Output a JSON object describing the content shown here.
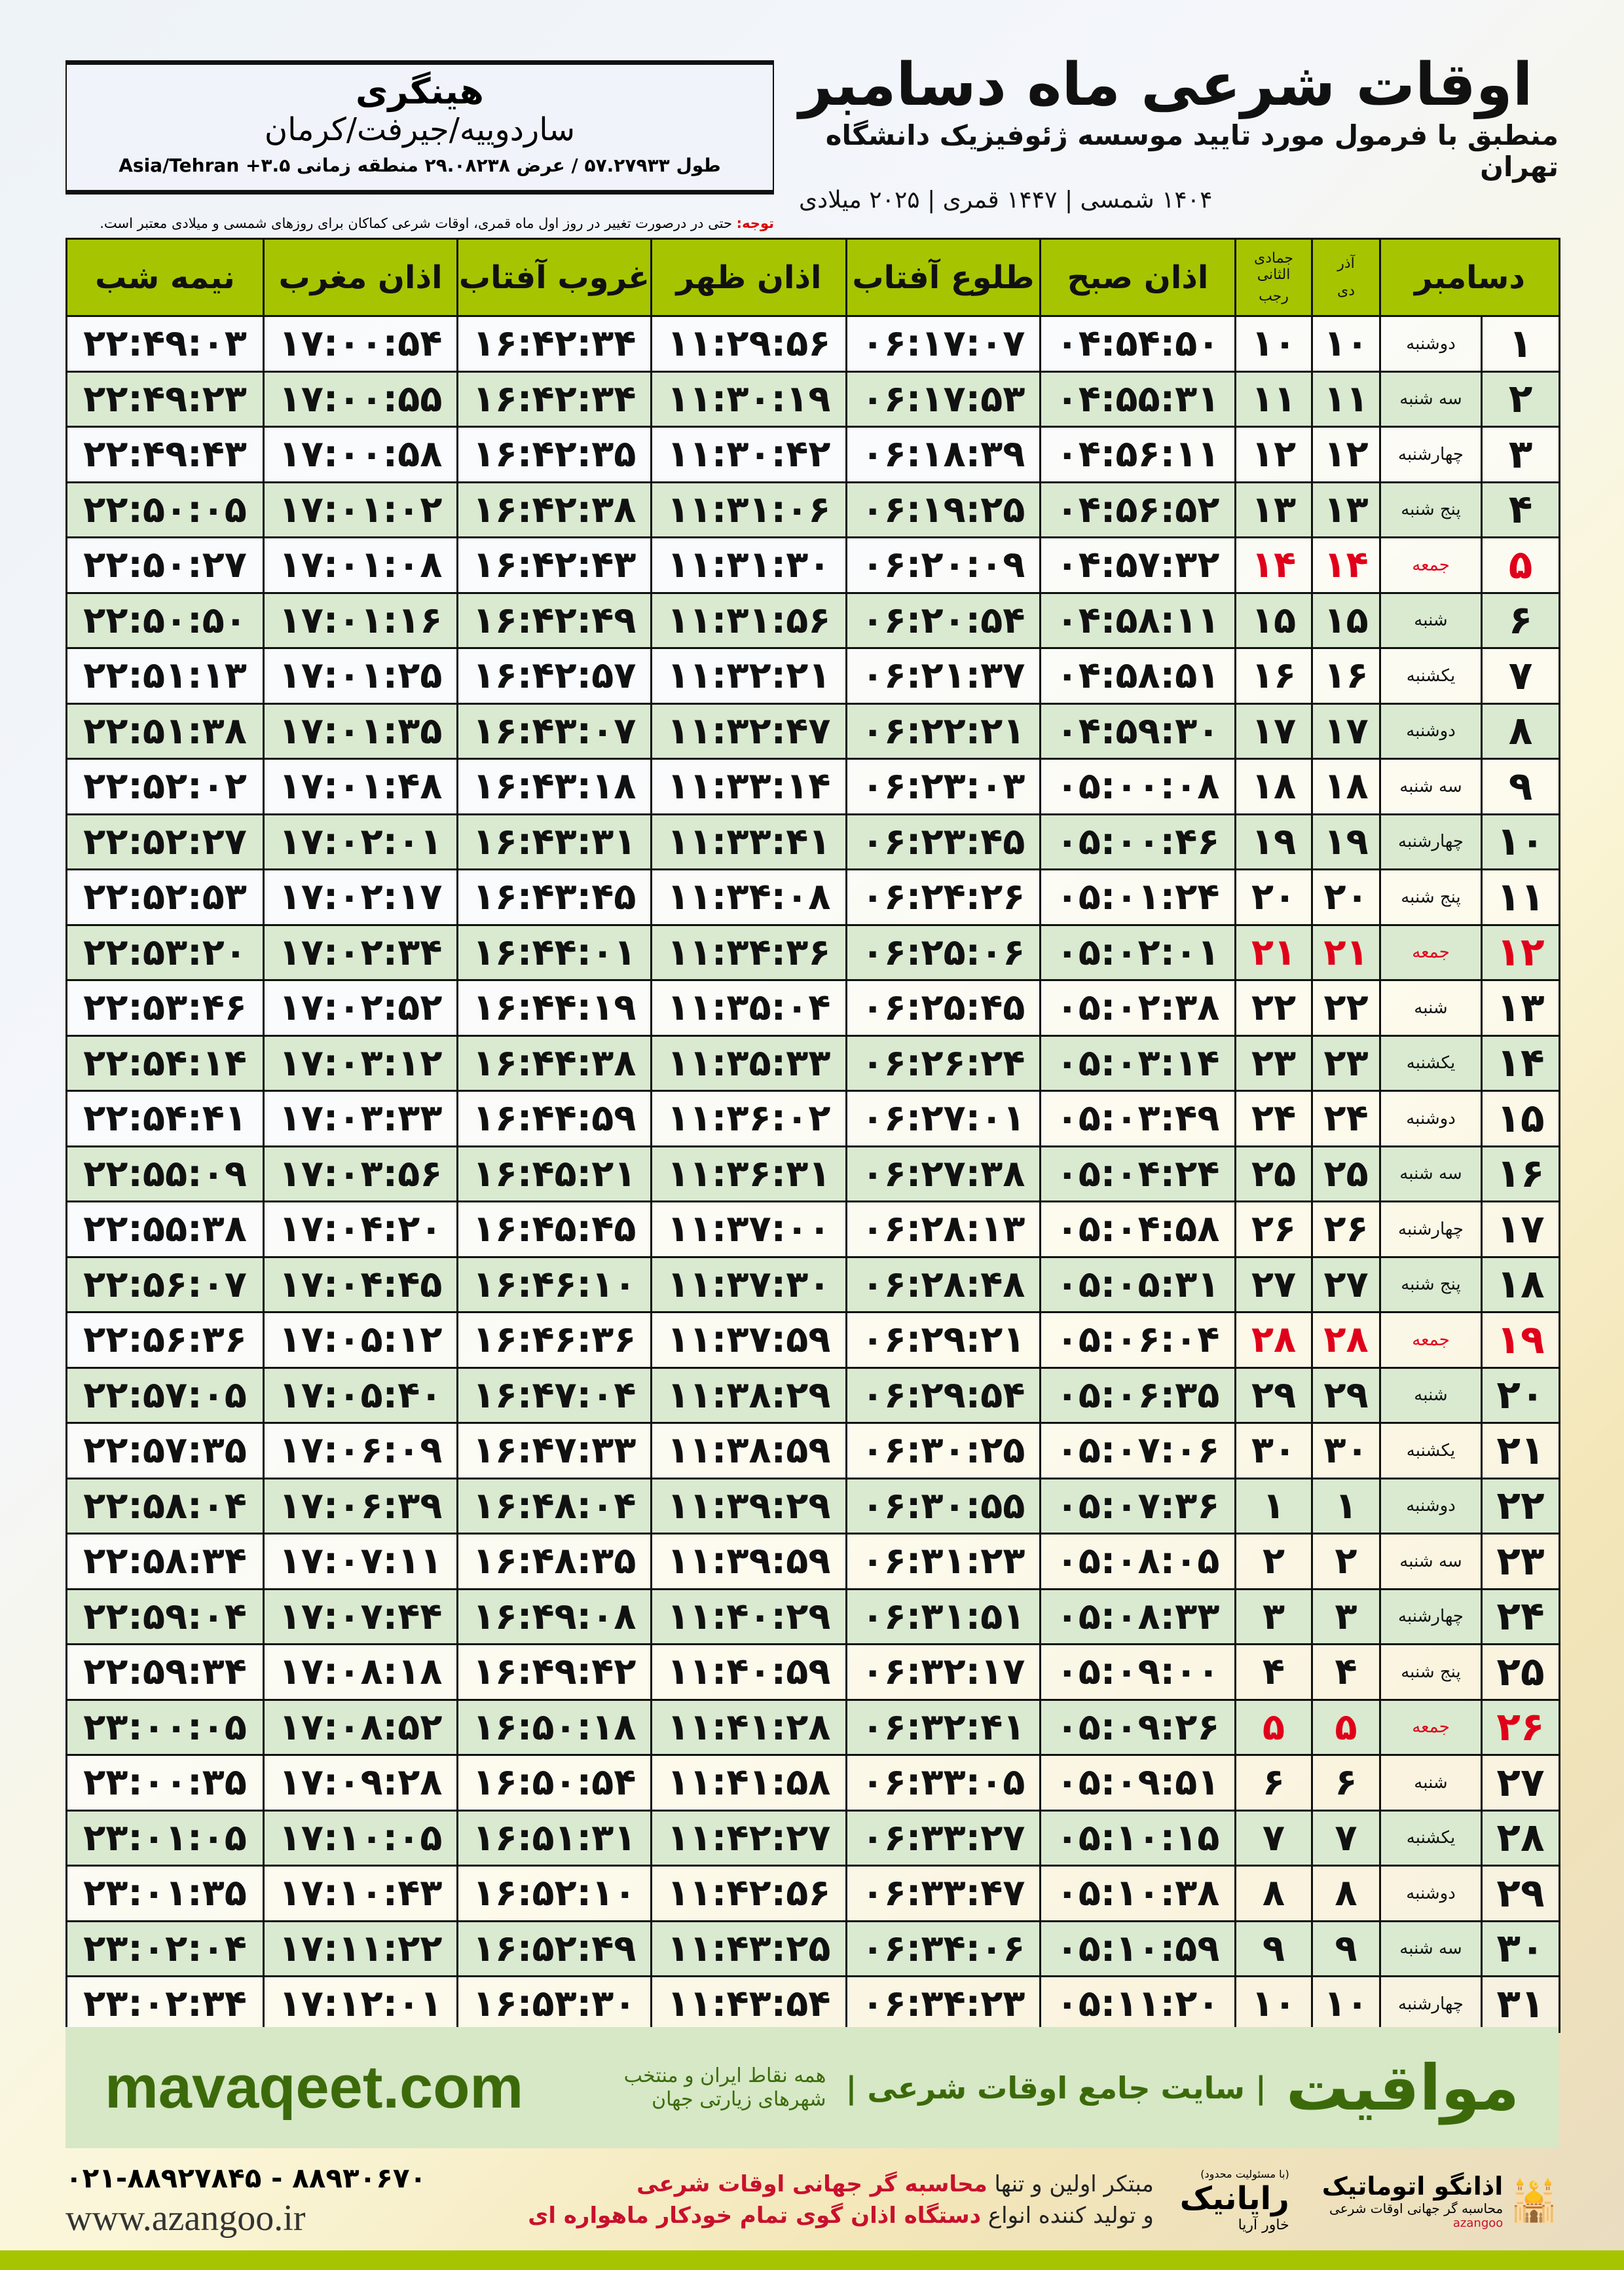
{
  "location": {
    "name": "هینگری",
    "region": "ساردوییه/جیرفت/کرمان",
    "coords": "طول ۵۷.۲۷۹۳۳ / عرض ۲۹.۰۸۲۳۸ منطقه زمانی ۳.۵+ Asia/Tehran"
  },
  "header": {
    "title": "اوقات شرعی ماه دسامبر",
    "subtitle": "منطبق با فرمول مورد تایید موسسه ژئوفیزیک دانشگاه تهران",
    "years": "۱۴۰۴ شمسی | ۱۴۴۷ قمری | ۲۰۲۵ میلادی"
  },
  "note": {
    "label": "توجه:",
    "text": " حتی در درصورت تغییر در روز اول ماه قمری، اوقات شرعی کماکان برای روزهای شمسی و میلادی معتبر است."
  },
  "table": {
    "headers": {
      "month": "دسامبر",
      "solar_top": "آذر",
      "solar_bottom": "دی",
      "lunar_top": "جمادی الثانی",
      "lunar_bottom": "رجب",
      "fajr": "اذان صبح",
      "sunrise": "طلوع آفتاب",
      "dhuhr": "اذان ظهر",
      "sunset": "غروب آفتاب",
      "maghrib": "اذان مغرب",
      "midnight": "نیمه شب"
    },
    "friday_color": "#e0001a",
    "header_color": "#a6c500",
    "alt_row_color": "#d9ead0",
    "rows": [
      [
        "۱",
        "دوشنبه",
        "۱۰",
        "۱۰",
        "۰۴:۵۴:۵۰",
        "۰۶:۱۷:۰۷",
        "۱۱:۲۹:۵۶",
        "۱۶:۴۲:۳۴",
        "۱۷:۰۰:۵۴",
        "۲۲:۴۹:۰۳"
      ],
      [
        "۲",
        "سه شنبه",
        "۱۱",
        "۱۱",
        "۰۴:۵۵:۳۱",
        "۰۶:۱۷:۵۳",
        "۱۱:۳۰:۱۹",
        "۱۶:۴۲:۳۴",
        "۱۷:۰۰:۵۵",
        "۲۲:۴۹:۲۳"
      ],
      [
        "۳",
        "چهارشنبه",
        "۱۲",
        "۱۲",
        "۰۴:۵۶:۱۱",
        "۰۶:۱۸:۳۹",
        "۱۱:۳۰:۴۲",
        "۱۶:۴۲:۳۵",
        "۱۷:۰۰:۵۸",
        "۲۲:۴۹:۴۳"
      ],
      [
        "۴",
        "پنج شنبه",
        "۱۳",
        "۱۳",
        "۰۴:۵۶:۵۲",
        "۰۶:۱۹:۲۵",
        "۱۱:۳۱:۰۶",
        "۱۶:۴۲:۳۸",
        "۱۷:۰۱:۰۲",
        "۲۲:۵۰:۰۵"
      ],
      [
        "۵",
        "جمعه",
        "۱۴",
        "۱۴",
        "۰۴:۵۷:۳۲",
        "۰۶:۲۰:۰۹",
        "۱۱:۳۱:۳۰",
        "۱۶:۴۲:۴۳",
        "۱۷:۰۱:۰۸",
        "۲۲:۵۰:۲۷"
      ],
      [
        "۶",
        "شنبه",
        "۱۵",
        "۱۵",
        "۰۴:۵۸:۱۱",
        "۰۶:۲۰:۵۴",
        "۱۱:۳۱:۵۶",
        "۱۶:۴۲:۴۹",
        "۱۷:۰۱:۱۶",
        "۲۲:۵۰:۵۰"
      ],
      [
        "۷",
        "یکشنبه",
        "۱۶",
        "۱۶",
        "۰۴:۵۸:۵۱",
        "۰۶:۲۱:۳۷",
        "۱۱:۳۲:۲۱",
        "۱۶:۴۲:۵۷",
        "۱۷:۰۱:۲۵",
        "۲۲:۵۱:۱۳"
      ],
      [
        "۸",
        "دوشنبه",
        "۱۷",
        "۱۷",
        "۰۴:۵۹:۳۰",
        "۰۶:۲۲:۲۱",
        "۱۱:۳۲:۴۷",
        "۱۶:۴۳:۰۷",
        "۱۷:۰۱:۳۵",
        "۲۲:۵۱:۳۸"
      ],
      [
        "۹",
        "سه شنبه",
        "۱۸",
        "۱۸",
        "۰۵:۰۰:۰۸",
        "۰۶:۲۳:۰۳",
        "۱۱:۳۳:۱۴",
        "۱۶:۴۳:۱۸",
        "۱۷:۰۱:۴۸",
        "۲۲:۵۲:۰۲"
      ],
      [
        "۱۰",
        "چهارشنبه",
        "۱۹",
        "۱۹",
        "۰۵:۰۰:۴۶",
        "۰۶:۲۳:۴۵",
        "۱۱:۳۳:۴۱",
        "۱۶:۴۳:۳۱",
        "۱۷:۰۲:۰۱",
        "۲۲:۵۲:۲۷"
      ],
      [
        "۱۱",
        "پنج شنبه",
        "۲۰",
        "۲۰",
        "۰۵:۰۱:۲۴",
        "۰۶:۲۴:۲۶",
        "۱۱:۳۴:۰۸",
        "۱۶:۴۳:۴۵",
        "۱۷:۰۲:۱۷",
        "۲۲:۵۲:۵۳"
      ],
      [
        "۱۲",
        "جمعه",
        "۲۱",
        "۲۱",
        "۰۵:۰۲:۰۱",
        "۰۶:۲۵:۰۶",
        "۱۱:۳۴:۳۶",
        "۱۶:۴۴:۰۱",
        "۱۷:۰۲:۳۴",
        "۲۲:۵۳:۲۰"
      ],
      [
        "۱۳",
        "شنبه",
        "۲۲",
        "۲۲",
        "۰۵:۰۲:۳۸",
        "۰۶:۲۵:۴۵",
        "۱۱:۳۵:۰۴",
        "۱۶:۴۴:۱۹",
        "۱۷:۰۲:۵۲",
        "۲۲:۵۳:۴۶"
      ],
      [
        "۱۴",
        "یکشنبه",
        "۲۳",
        "۲۳",
        "۰۵:۰۳:۱۴",
        "۰۶:۲۶:۲۴",
        "۱۱:۳۵:۳۳",
        "۱۶:۴۴:۳۸",
        "۱۷:۰۳:۱۲",
        "۲۲:۵۴:۱۴"
      ],
      [
        "۱۵",
        "دوشنبه",
        "۲۴",
        "۲۴",
        "۰۵:۰۳:۴۹",
        "۰۶:۲۷:۰۱",
        "۱۱:۳۶:۰۲",
        "۱۶:۴۴:۵۹",
        "۱۷:۰۳:۳۳",
        "۲۲:۵۴:۴۱"
      ],
      [
        "۱۶",
        "سه شنبه",
        "۲۵",
        "۲۵",
        "۰۵:۰۴:۲۴",
        "۰۶:۲۷:۳۸",
        "۱۱:۳۶:۳۱",
        "۱۶:۴۵:۲۱",
        "۱۷:۰۳:۵۶",
        "۲۲:۵۵:۰۹"
      ],
      [
        "۱۷",
        "چهارشنبه",
        "۲۶",
        "۲۶",
        "۰۵:۰۴:۵۸",
        "۰۶:۲۸:۱۳",
        "۱۱:۳۷:۰۰",
        "۱۶:۴۵:۴۵",
        "۱۷:۰۴:۲۰",
        "۲۲:۵۵:۳۸"
      ],
      [
        "۱۸",
        "پنج شنبه",
        "۲۷",
        "۲۷",
        "۰۵:۰۵:۳۱",
        "۰۶:۲۸:۴۸",
        "۱۱:۳۷:۳۰",
        "۱۶:۴۶:۱۰",
        "۱۷:۰۴:۴۵",
        "۲۲:۵۶:۰۷"
      ],
      [
        "۱۹",
        "جمعه",
        "۲۸",
        "۲۸",
        "۰۵:۰۶:۰۴",
        "۰۶:۲۹:۲۱",
        "۱۱:۳۷:۵۹",
        "۱۶:۴۶:۳۶",
        "۱۷:۰۵:۱۲",
        "۲۲:۵۶:۳۶"
      ],
      [
        "۲۰",
        "شنبه",
        "۲۹",
        "۲۹",
        "۰۵:۰۶:۳۵",
        "۰۶:۲۹:۵۴",
        "۱۱:۳۸:۲۹",
        "۱۶:۴۷:۰۴",
        "۱۷:۰۵:۴۰",
        "۲۲:۵۷:۰۵"
      ],
      [
        "۲۱",
        "یکشنبه",
        "۳۰",
        "۳۰",
        "۰۵:۰۷:۰۶",
        "۰۶:۳۰:۲۵",
        "۱۱:۳۸:۵۹",
        "۱۶:۴۷:۳۳",
        "۱۷:۰۶:۰۹",
        "۲۲:۵۷:۳۵"
      ],
      [
        "۲۲",
        "دوشنبه",
        "۱",
        "۱",
        "۰۵:۰۷:۳۶",
        "۰۶:۳۰:۵۵",
        "۱۱:۳۹:۲۹",
        "۱۶:۴۸:۰۴",
        "۱۷:۰۶:۳۹",
        "۲۲:۵۸:۰۴"
      ],
      [
        "۲۳",
        "سه شنبه",
        "۲",
        "۲",
        "۰۵:۰۸:۰۵",
        "۰۶:۳۱:۲۳",
        "۱۱:۳۹:۵۹",
        "۱۶:۴۸:۳۵",
        "۱۷:۰۷:۱۱",
        "۲۲:۵۸:۳۴"
      ],
      [
        "۲۴",
        "چهارشنبه",
        "۳",
        "۳",
        "۰۵:۰۸:۳۳",
        "۰۶:۳۱:۵۱",
        "۱۱:۴۰:۲۹",
        "۱۶:۴۹:۰۸",
        "۱۷:۰۷:۴۴",
        "۲۲:۵۹:۰۴"
      ],
      [
        "۲۵",
        "پنج شنبه",
        "۴",
        "۴",
        "۰۵:۰۹:۰۰",
        "۰۶:۳۲:۱۷",
        "۱۱:۴۰:۵۹",
        "۱۶:۴۹:۴۲",
        "۱۷:۰۸:۱۸",
        "۲۲:۵۹:۳۴"
      ],
      [
        "۲۶",
        "جمعه",
        "۵",
        "۵",
        "۰۵:۰۹:۲۶",
        "۰۶:۳۲:۴۱",
        "۱۱:۴۱:۲۸",
        "۱۶:۵۰:۱۸",
        "۱۷:۰۸:۵۲",
        "۲۳:۰۰:۰۵"
      ],
      [
        "۲۷",
        "شنبه",
        "۶",
        "۶",
        "۰۵:۰۹:۵۱",
        "۰۶:۳۳:۰۵",
        "۱۱:۴۱:۵۸",
        "۱۶:۵۰:۵۴",
        "۱۷:۰۹:۲۸",
        "۲۳:۰۰:۳۵"
      ],
      [
        "۲۸",
        "یکشنبه",
        "۷",
        "۷",
        "۰۵:۱۰:۱۵",
        "۰۶:۳۳:۲۷",
        "۱۱:۴۲:۲۷",
        "۱۶:۵۱:۳۱",
        "۱۷:۱۰:۰۵",
        "۲۳:۰۱:۰۵"
      ],
      [
        "۲۹",
        "دوشنبه",
        "۸",
        "۸",
        "۰۵:۱۰:۳۸",
        "۰۶:۳۳:۴۷",
        "۱۱:۴۲:۵۶",
        "۱۶:۵۲:۱۰",
        "۱۷:۱۰:۴۳",
        "۲۳:۰۱:۳۵"
      ],
      [
        "۳۰",
        "سه شنبه",
        "۹",
        "۹",
        "۰۵:۱۰:۵۹",
        "۰۶:۳۴:۰۶",
        "۱۱:۴۳:۲۵",
        "۱۶:۵۲:۴۹",
        "۱۷:۱۱:۲۲",
        "۲۳:۰۲:۰۴"
      ],
      [
        "۳۱",
        "چهارشنبه",
        "۱۰",
        "۱۰",
        "۰۵:۱۱:۲۰",
        "۰۶:۳۴:۲۳",
        "۱۱:۴۳:۵۴",
        "۱۶:۵۳:۳۰",
        "۱۷:۱۲:۰۱",
        "۲۳:۰۲:۳۴"
      ]
    ]
  },
  "banner": {
    "site": "mavaqeet.com",
    "brand": "مواقیت",
    "slogan": "| سایت جامع اوقات شرعی |",
    "slogan2": "همه نقاط ایران و منتخب شهرهای زیارتی جهان",
    "brand_color": "#3c6a0a"
  },
  "footer": {
    "phone": "۰۲۱-۸۸۹۲۷۸۴۵ - ۸۸۹۳۰۶۷۰",
    "web": "www.azangoo.ir",
    "line1_a": "مبتکر اولین و تنها ",
    "line1_b": "محاسبه گر جهانی اوقات شرعی",
    "line2_a": "و تولید کننده انواع ",
    "line2_b": "دستگاه اذان گوی تمام خودکار ماهواره ای",
    "logo_azangoo": "اذانگو اتوماتیک",
    "logo_azangoo_sub": "محاسبه گر جهانی اوقات شرعی",
    "logo_azangoo_en": "azangoo",
    "logo_rayanik": "رایانیک",
    "logo_rayanik_sub": "خاور آریا",
    "logo_rayanik_note": "(با مسئولیت محدود)"
  }
}
